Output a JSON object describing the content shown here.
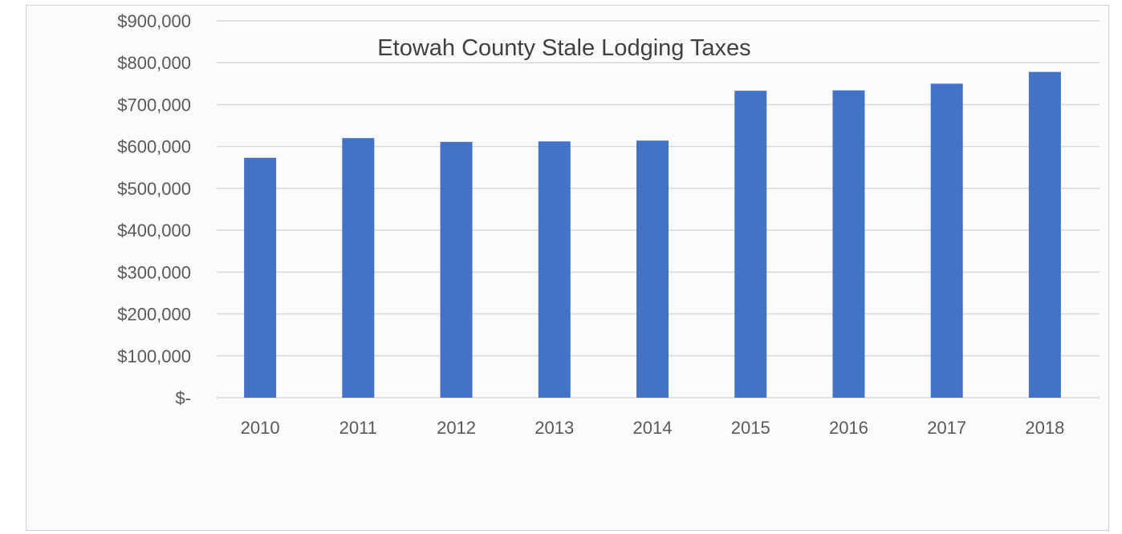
{
  "chart_data": {
    "type": "bar",
    "title": "Etowah County Stale Lodging Taxes",
    "xlabel": "",
    "ylabel": "",
    "categories": [
      "2010",
      "2011",
      "2012",
      "2013",
      "2014",
      "2015",
      "2016",
      "2017",
      "2018"
    ],
    "values": [
      573000,
      620000,
      611000,
      612000,
      614000,
      733000,
      734000,
      750000,
      778000
    ],
    "ylim": [
      0,
      900000
    ],
    "y_ticks": [
      0,
      100000,
      200000,
      300000,
      400000,
      500000,
      600000,
      700000,
      800000,
      900000
    ],
    "y_tick_labels": [
      "$-",
      "$100,000",
      "$200,000",
      "$300,000",
      "$400,000",
      "$500,000",
      "$600,000",
      "$700,000",
      "$800,000",
      "$900,000"
    ],
    "grid": true,
    "legend": "none",
    "bar_color": "#4472C4",
    "grid_color": "#d9d9d9"
  }
}
